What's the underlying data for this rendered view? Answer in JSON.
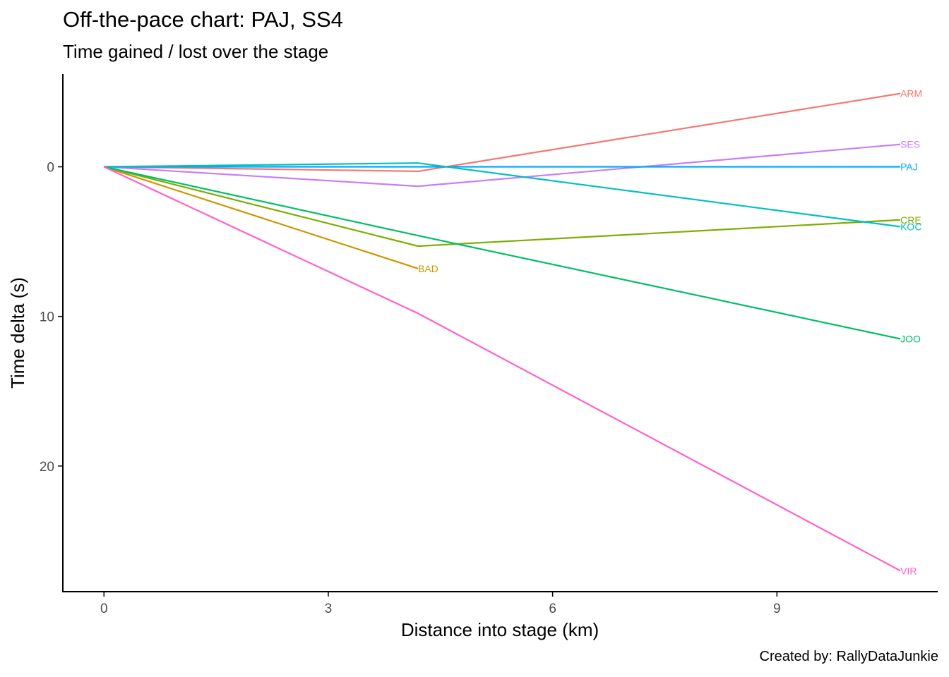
{
  "chart_data": {
    "type": "line",
    "title": "Off-the-pace chart: PAJ, SS4",
    "subtitle": "Time gained / lost over the stage",
    "caption": "Created by: RallyDataJunkie",
    "xlabel": "Distance into stage (km)",
    "ylabel": "Time delta (s)",
    "xlim": [
      -0.55,
      11.15
    ],
    "ylim": [
      28.4,
      -6.2
    ],
    "y_reversed": true,
    "x_ticks": [
      0,
      3,
      6,
      9
    ],
    "y_ticks": [
      0,
      10,
      20
    ],
    "grid": false,
    "legend": "none",
    "series": [
      {
        "name": "ARM",
        "color": "#F8766D",
        "x": [
          0,
          4.2,
          10.65
        ],
        "y": [
          0,
          0.3,
          -4.9
        ]
      },
      {
        "name": "SES",
        "color": "#C77CFF",
        "x": [
          0,
          4.2,
          10.65
        ],
        "y": [
          0,
          1.3,
          -1.5
        ]
      },
      {
        "name": "PAJ",
        "color": "#00A9FF",
        "x": [
          0,
          4.2,
          10.65
        ],
        "y": [
          0,
          0,
          0
        ]
      },
      {
        "name": "CRE",
        "color": "#7CAE00",
        "x": [
          0,
          4.2,
          10.65
        ],
        "y": [
          0,
          5.3,
          3.55
        ]
      },
      {
        "name": "KOC",
        "color": "#00BFC4",
        "x": [
          0,
          4.2,
          10.65
        ],
        "y": [
          0,
          -0.25,
          4.0
        ]
      },
      {
        "name": "BAD",
        "color": "#CD9600",
        "x": [
          0,
          4.2
        ],
        "y": [
          0,
          6.8
        ]
      },
      {
        "name": "JOO",
        "color": "#00BE67",
        "x": [
          0,
          4.2,
          10.65
        ],
        "y": [
          0,
          4.6,
          11.5
        ]
      },
      {
        "name": "VIR",
        "color": "#FF61CC",
        "x": [
          0,
          4.2,
          10.65
        ],
        "y": [
          0,
          9.8,
          27.0
        ]
      }
    ]
  }
}
